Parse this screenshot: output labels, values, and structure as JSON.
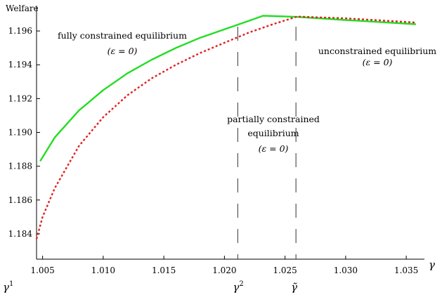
{
  "chart_data": {
    "type": "line",
    "ylabel": "Welfare",
    "xlabel": "γ",
    "xlim": [
      1.0045,
      1.0365
    ],
    "ylim": [
      1.1825,
      1.1975
    ],
    "x_ticks": [
      1.005,
      1.01,
      1.015,
      1.02,
      1.025,
      1.03,
      1.035
    ],
    "x_tick_labels": [
      "1.005",
      "1.010",
      "1.015",
      "1.020",
      "1.025",
      "1.030",
      "1.035"
    ],
    "y_ticks": [
      1.184,
      1.186,
      1.188,
      1.19,
      1.192,
      1.194,
      1.196
    ],
    "y_tick_labels": [
      "1.184",
      "1.186",
      "1.188",
      "1.190",
      "1.192",
      "1.194",
      "1.196"
    ],
    "grid": false,
    "series": [
      {
        "color": "#22dd22",
        "style": "solid",
        "x": [
          1.0048,
          1.006,
          1.008,
          1.01,
          1.012,
          1.014,
          1.016,
          1.018,
          1.02,
          1.022,
          1.0232,
          1.026,
          1.03,
          1.0358
        ],
        "y": [
          1.1883,
          1.1897,
          1.1913,
          1.1925,
          1.1935,
          1.1943,
          1.195,
          1.1956,
          1.1961,
          1.1966,
          1.1969,
          1.19683,
          1.19665,
          1.1964
        ]
      },
      {
        "color": "#e02020",
        "style": "dotted",
        "x": [
          1.0045,
          1.005,
          1.006,
          1.008,
          1.01,
          1.012,
          1.014,
          1.016,
          1.018,
          1.02,
          1.022,
          1.024,
          1.026,
          1.03,
          1.0358
        ],
        "y": [
          1.1837,
          1.185,
          1.1867,
          1.1892,
          1.1909,
          1.1922,
          1.1932,
          1.194,
          1.1947,
          1.1953,
          1.1959,
          1.1964,
          1.19685,
          1.19675,
          1.1965
        ]
      }
    ],
    "vertical_lines": [
      {
        "x": 1.0211,
        "label_base": "γ",
        "label_sup": "2"
      },
      {
        "x": 1.0259,
        "label_base": "γ̃",
        "label_sup": ""
      }
    ],
    "gamma1_label": {
      "base": "γ",
      "sup": "1"
    },
    "annotations": {
      "fully": {
        "line1": "fully constrained equilibrium",
        "line2": "(ε = 0)"
      },
      "partially": {
        "line1": "partially constrained",
        "line2": "equilibrium",
        "line3": "(ε = 0)"
      },
      "unconstrained": {
        "line1": "unconstrained equilibrium",
        "line2": "(ε = 0)"
      }
    }
  }
}
